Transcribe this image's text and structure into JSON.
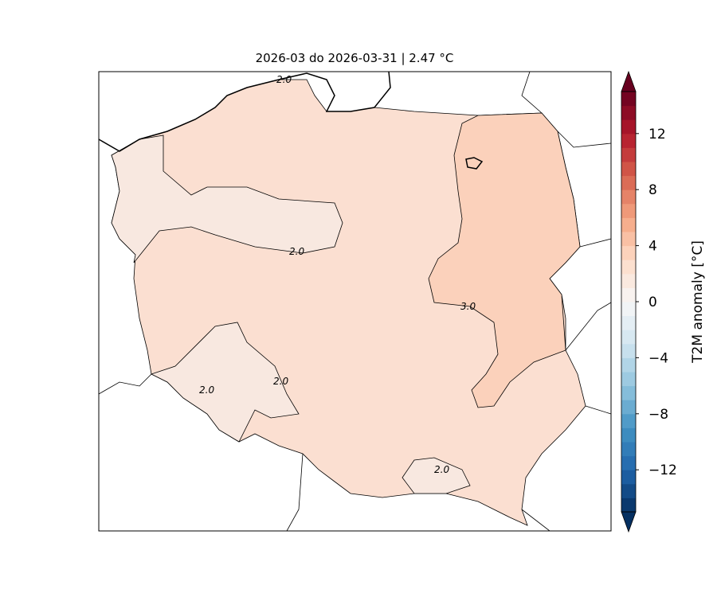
{
  "chart_data": {
    "type": "heatmap",
    "title": "2026-03 do 2026-03-31 | 2.47 °C",
    "region": "Poland",
    "mean_anomaly": 2.47,
    "colorbar": {
      "label": "T2M anomaly [°C]",
      "range": [
        -15,
        15
      ],
      "step": 1,
      "ticks": [
        -12,
        -8,
        -4,
        0,
        4,
        8,
        12
      ],
      "tick_labels": [
        "−12",
        "−8",
        "−4",
        "0",
        "4",
        "8",
        "12"
      ],
      "extend": "both",
      "colormap": "RdBu_r"
    },
    "contours": [
      {
        "level": 2.0,
        "label": "2.0"
      },
      {
        "level": 3.0,
        "label": "3.0"
      }
    ],
    "contour_labels": [
      "2.0",
      "2.0",
      "2.0",
      "2.0",
      "2.0",
      "3.0"
    ],
    "zones": [
      {
        "range": [
          1,
          2
        ],
        "color": "#f8e8e0"
      },
      {
        "range": [
          2,
          3
        ],
        "color": "#fbdfd1"
      },
      {
        "range": [
          3,
          4
        ],
        "color": "#fbd1bb"
      }
    ]
  }
}
